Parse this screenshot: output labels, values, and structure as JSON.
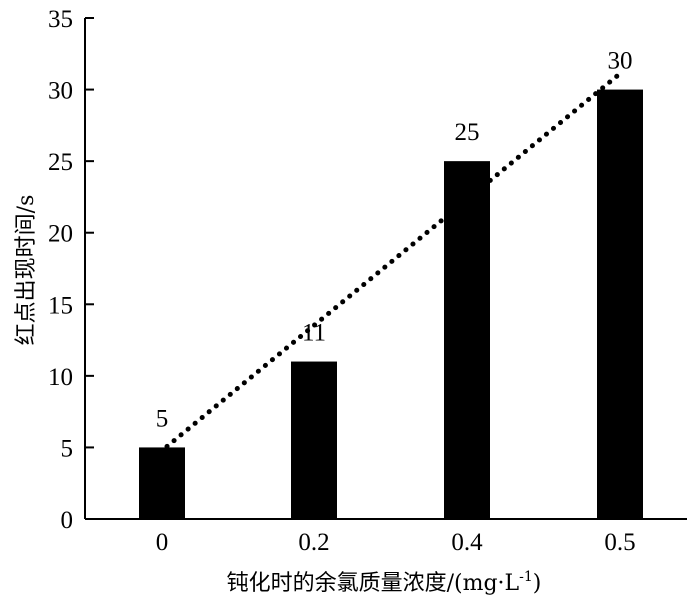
{
  "chart_data": {
    "type": "bar",
    "categories": [
      "0",
      "0.2",
      "0.4",
      "0.5"
    ],
    "values": [
      5,
      11,
      25,
      30
    ],
    "data_labels": [
      "5",
      "11",
      "25",
      "30"
    ],
    "title": "",
    "xlabel": "钝化时的余氯质量浓度/(mg·L",
    "xlabel_sup": "-1",
    "xlabel_tail": ")",
    "ylabel": "红点出现时间/s",
    "ylim": [
      0,
      35
    ],
    "yticks": [
      0,
      5,
      10,
      15,
      20,
      25,
      30,
      35
    ],
    "grid": false,
    "legend": "none",
    "trendline": "dotted linear",
    "bar_color": "#000000"
  }
}
